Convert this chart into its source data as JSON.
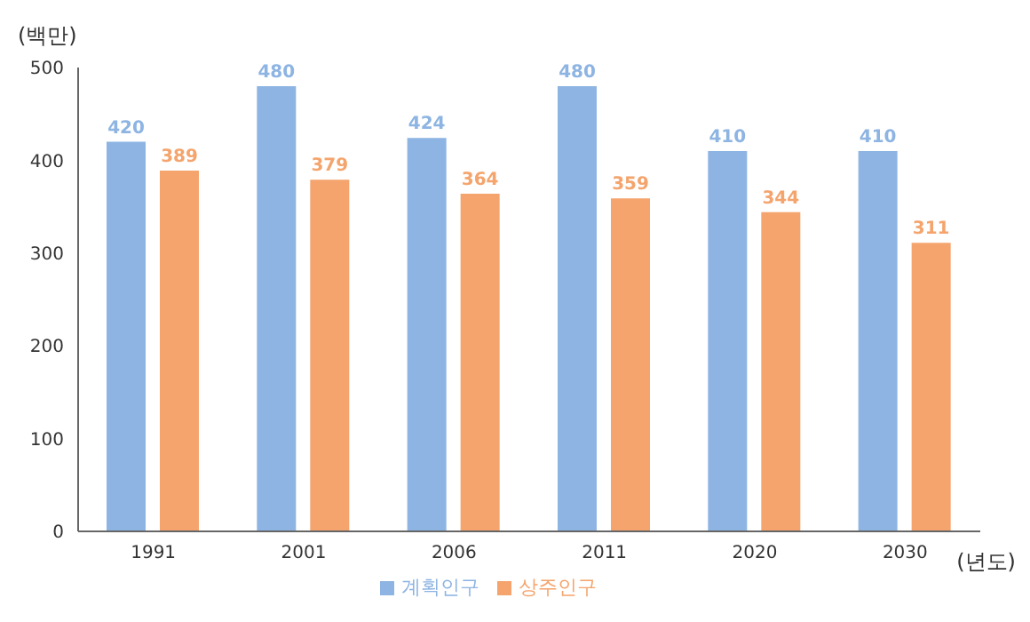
{
  "chart_data": {
    "type": "bar",
    "ylabel": "(백만)",
    "xlabel": "(년도)",
    "categories": [
      "1991",
      "2001",
      "2006",
      "2011",
      "2020",
      "2030"
    ],
    "series": [
      {
        "name": "계획인구",
        "color": "#8db4e2",
        "values": [
          420,
          480,
          424,
          480,
          410,
          410
        ]
      },
      {
        "name": "상주인구",
        "color": "#f4a46c",
        "values": [
          389,
          379,
          364,
          359,
          344,
          311
        ]
      }
    ],
    "ylim": [
      0,
      500
    ],
    "yticks": [
      0,
      100,
      200,
      300,
      400,
      500
    ],
    "grid": false,
    "legend": "bottom",
    "data_labels": true
  }
}
